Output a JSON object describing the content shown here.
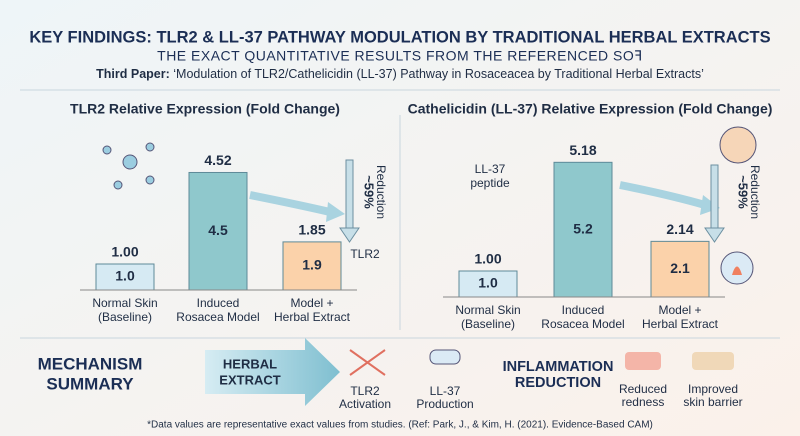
{
  "header": {
    "title": "KEY FINDINGS: TLR2 & LL-37 PATHWAY MODULATION BY TRADITIONAL HERBAL EXTRACTS",
    "subtitle": "THE EXACT QUANTITATIVE RESULTS FROM THE REFERENCED SOꟻ",
    "paper_label": "Third Paper:",
    "paper_title": "‘Modulation of TLR2/Cathelicidin (LL-37) Pathway in Rosaceacea by Traditional Herbal Extracts’"
  },
  "chart_data": [
    {
      "type": "bar",
      "title": "TLR2 Relative Expression (Fold Change)",
      "categories": [
        [
          "Normal Skin",
          "(Baseline)"
        ],
        [
          "Induced",
          "Rosacea Model"
        ],
        [
          "Model +",
          "Herbal Extract"
        ]
      ],
      "values": [
        1.0,
        4.52,
        1.85
      ],
      "value_labels": [
        "1.00",
        "4.52",
        "1.85"
      ],
      "inner_labels": [
        "1.0",
        "4.5",
        "1.9"
      ],
      "colors": [
        "#d6eaf3",
        "#8fc8cc",
        "#fbd2aa"
      ],
      "ylim": [
        0,
        6
      ],
      "annotations": {
        "reduction": "~59%",
        "reduction_word": "Reduction",
        "icon_label": "TLR2"
      }
    },
    {
      "type": "bar",
      "title": "Cathelicidin (LL-37) Relative Expression (Fold Change)",
      "categories": [
        [
          "Normal Skin",
          "(Baseline)"
        ],
        [
          "Induced",
          "Rosacea Model"
        ],
        [
          "Model +",
          "Herbal Extract"
        ]
      ],
      "values": [
        1.0,
        5.18,
        2.14
      ],
      "value_labels": [
        "1.00",
        "5.18",
        "2.14"
      ],
      "inner_labels": [
        "1.0",
        "5.2",
        "2.1"
      ],
      "colors": [
        "#d6eaf3",
        "#8fc8cc",
        "#fbd2aa"
      ],
      "ylim": [
        0,
        6
      ],
      "annotations": {
        "reduction": "~59%",
        "reduction_word": "Reduction",
        "icon_label": [
          "LL-37",
          "peptide"
        ]
      }
    }
  ],
  "mechanism": {
    "title": [
      "MECHANISM",
      "SUMMARY"
    ],
    "arrow": [
      "HERBAL",
      "EXTRACT"
    ],
    "steps": [
      [
        "TLR2",
        "Activation"
      ],
      [
        "LL-37",
        "Production"
      ]
    ],
    "result": [
      "INFLAMMATION",
      "REDUCTION"
    ],
    "outcomes": [
      [
        "Reduced",
        "redness"
      ],
      [
        "Improved",
        "skin barrier"
      ]
    ]
  },
  "footnote": "*Data values are representative exact values from studies. (Ref: Park, J., & Kim, H. (2021). Evidence-Based CAM)"
}
